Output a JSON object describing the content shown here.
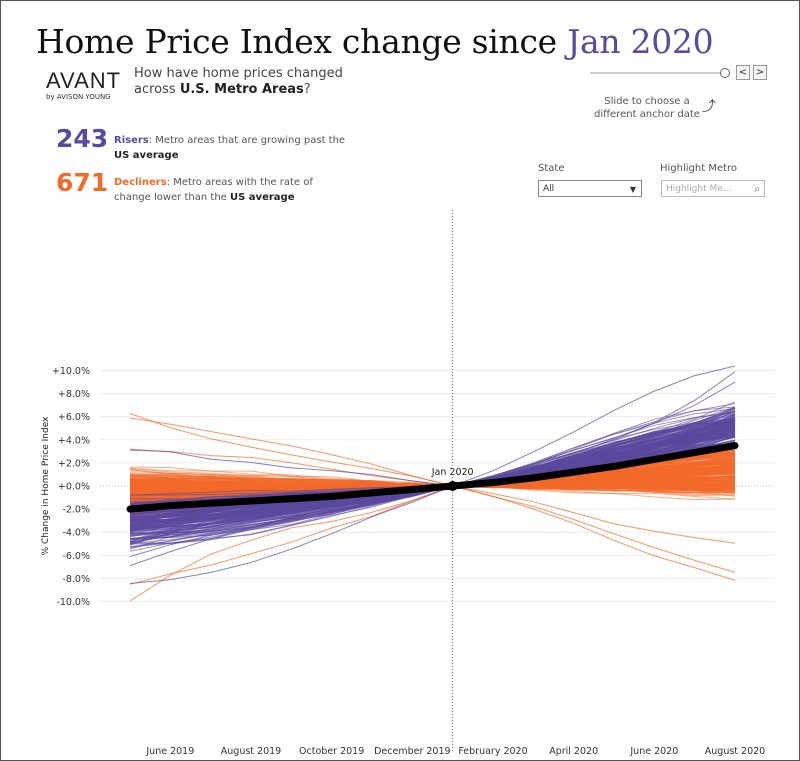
{
  "header": {
    "title_prefix": "Home Price Index change since ",
    "title_highlight": "Jan 2020",
    "logo_word": "AVANT",
    "logo_sub": "by AVISON YOUNG",
    "question_line1": "How have home prices changed",
    "question_line2_prefix": "across ",
    "question_line2_bold": "U.S. Metro Areas",
    "question_line2_suffix": "?"
  },
  "slider": {
    "note_line1": "Slide to choose a",
    "note_line2": "different anchor date",
    "prev_label": "<",
    "next_label": ">"
  },
  "stats": {
    "risers_count": "243",
    "risers_key": "Risers",
    "risers_text": ": Metro areas that are growing past the",
    "risers_bold": "US average",
    "decliners_count": "671",
    "decliners_key": "Decliners",
    "decliners_text": ": Metro areas with the rate of",
    "decliners_text2": "change lower than the ",
    "decliners_bold": "US average"
  },
  "filters": {
    "state_label": "State",
    "state_value": "All",
    "metro_label": "Highlight Metro",
    "metro_placeholder": "Highlight Me..."
  },
  "colors": {
    "riser": "#5b4a9e",
    "decliner": "#f26a2a",
    "average": "#000000"
  },
  "chart_data": {
    "type": "line",
    "ylabel": "% Change in Home Price Index",
    "xlabel": "",
    "x": [
      "May 2019",
      "Jun 2019",
      "Jul 2019",
      "Aug 2019",
      "Sep 2019",
      "Oct 2019",
      "Nov 2019",
      "Dec 2019",
      "Jan 2020",
      "Feb 2020",
      "Mar 2020",
      "Apr 2020",
      "May 2020",
      "Jun 2020",
      "Jul 2020",
      "Aug 2020"
    ],
    "x_ticks": [
      "June 2019",
      "August 2019",
      "October 2019",
      "December 2019",
      "February 2020",
      "April 2020",
      "June 2020",
      "August 2020"
    ],
    "y_ticks": [
      "+10.0%",
      "+8.0%",
      "+6.0%",
      "+4.0%",
      "+2.0%",
      "+0.0%",
      "-2.0%",
      "-4.0%",
      "-6.0%",
      "-8.0%",
      "-10.0%"
    ],
    "ylim": [
      -10.5,
      10.5
    ],
    "anchor_label": "Jan 2020",
    "anchor_index": 8,
    "us_average": [
      -2.0,
      -1.7,
      -1.5,
      -1.3,
      -1.1,
      -0.9,
      -0.6,
      -0.3,
      0.0,
      0.3,
      0.7,
      1.2,
      1.7,
      2.3,
      2.9,
      3.5
    ],
    "series": [
      {
        "group": "Risers",
        "count": 243,
        "start_range": [
          -8.5,
          3.3
        ],
        "end_range": [
          3.6,
          10.6
        ]
      },
      {
        "group": "Decliners",
        "count": 671,
        "start_range": [
          -10.0,
          5.8
        ],
        "end_range": [
          -8.3,
          3.5
        ]
      }
    ],
    "grid": true
  }
}
